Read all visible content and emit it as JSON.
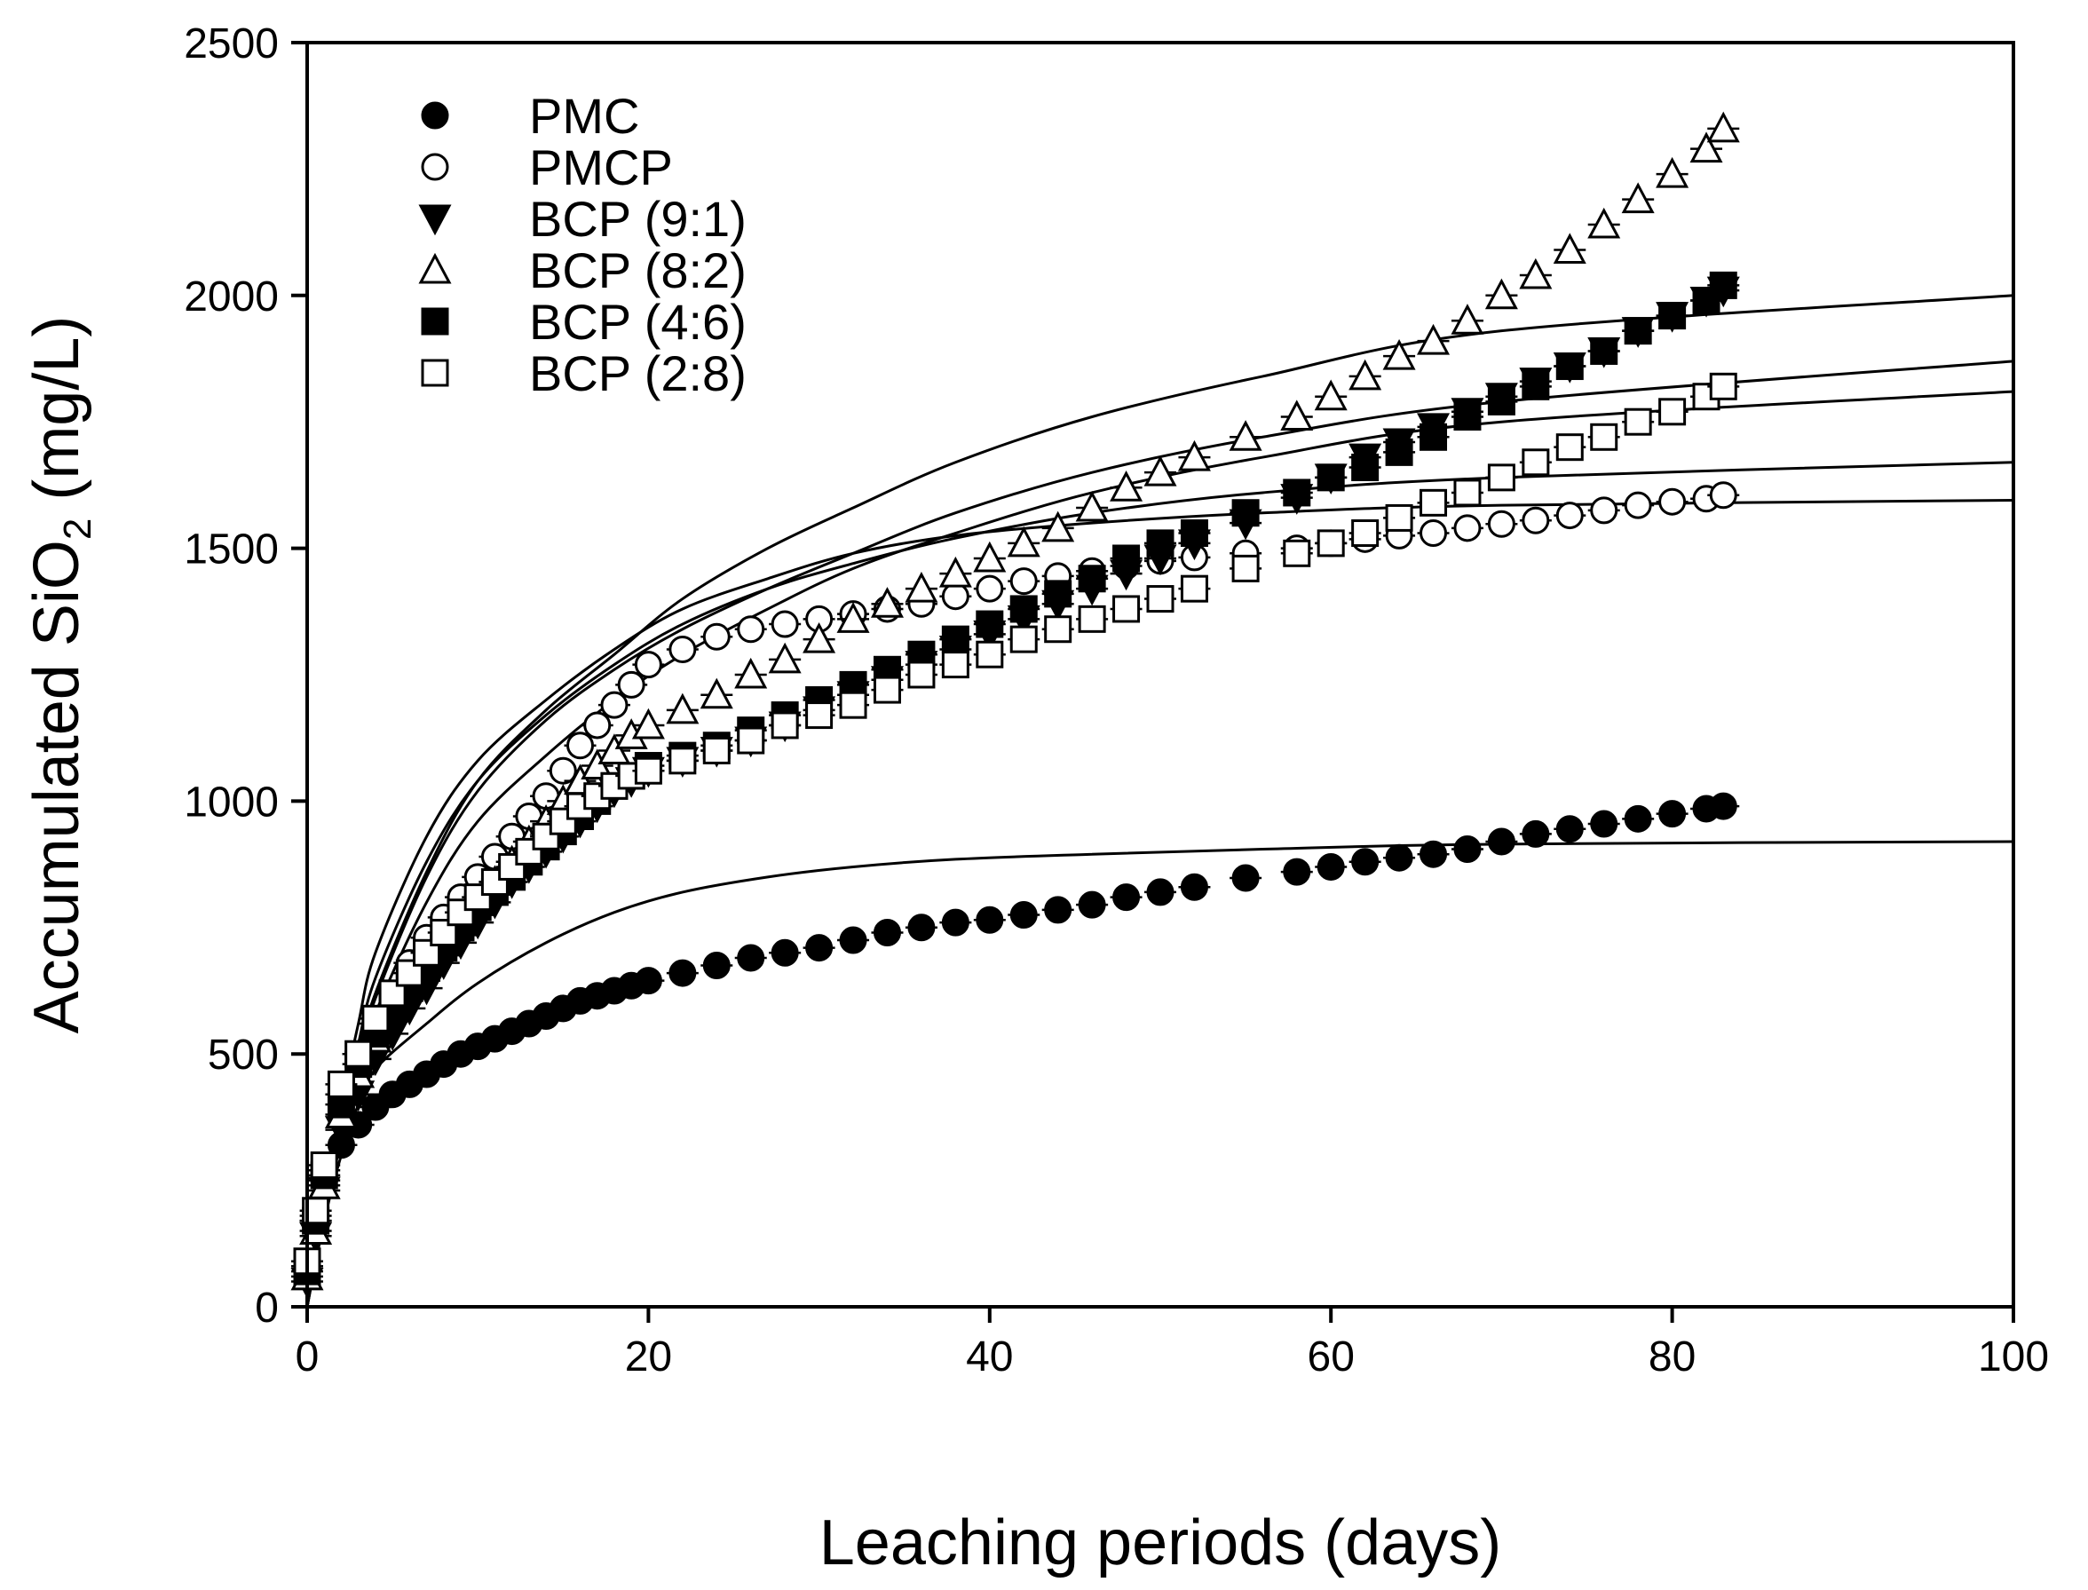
{
  "chart_data": {
    "type": "scatter",
    "title": "",
    "xlabel": "Leaching periods (days)",
    "ylabel": {
      "main": "Accumulated  SiO",
      "sub": "2",
      "suffix": " (mg/L)"
    },
    "xlim": [
      0,
      100
    ],
    "ylim": [
      0,
      2500
    ],
    "x_ticks": [
      "0",
      "20",
      "40",
      "60",
      "80",
      "100"
    ],
    "y_ticks": [
      "0",
      "500",
      "1000",
      "1500",
      "2000",
      "2500"
    ],
    "grid": false,
    "legend_position": "top-left",
    "series": [
      {
        "name": "PMC",
        "marker": "filled-circle",
        "x": [
          0,
          0.5,
          1,
          2,
          3,
          4,
          5,
          6,
          7,
          8,
          9,
          10,
          11,
          12,
          13,
          14,
          15,
          16,
          17,
          18,
          19,
          20,
          22,
          24,
          26,
          28,
          30,
          32,
          34,
          36,
          38,
          40,
          42,
          44,
          46,
          48,
          50,
          52,
          55,
          58,
          60,
          62,
          64,
          66,
          68,
          70,
          72,
          74,
          76,
          78,
          80,
          82,
          83
        ],
        "y": [
          80,
          170,
          250,
          320,
          360,
          395,
          420,
          440,
          460,
          480,
          500,
          515,
          530,
          545,
          560,
          575,
          590,
          605,
          615,
          625,
          635,
          645,
          660,
          675,
          690,
          700,
          710,
          725,
          740,
          750,
          760,
          765,
          775,
          785,
          795,
          810,
          820,
          830,
          848,
          860,
          870,
          880,
          888,
          895,
          905,
          920,
          935,
          945,
          955,
          965,
          975,
          985,
          990
        ],
        "fit": [
          0,
          170,
          300,
          400,
          470,
          560,
          640,
          720,
          780,
          820,
          850,
          870,
          885,
          895,
          905,
          915,
          920
        ]
      },
      {
        "name": "PMCP",
        "marker": "open-circle",
        "x": [
          0,
          0.5,
          1,
          2,
          3,
          4,
          5,
          6,
          7,
          8,
          9,
          10,
          11,
          12,
          13,
          14,
          15,
          16,
          17,
          18,
          19,
          20,
          22,
          24,
          26,
          28,
          30,
          32,
          34,
          36,
          38,
          40,
          42,
          44,
          46,
          48,
          50,
          52,
          55,
          58,
          60,
          62,
          64,
          66,
          68,
          70,
          72,
          74,
          76,
          78,
          80,
          82,
          83
        ],
        "y": [
          80,
          180,
          270,
          420,
          500,
          560,
          620,
          680,
          730,
          770,
          810,
          850,
          890,
          930,
          970,
          1010,
          1060,
          1110,
          1150,
          1190,
          1230,
          1270,
          1300,
          1325,
          1340,
          1350,
          1360,
          1370,
          1380,
          1390,
          1405,
          1420,
          1435,
          1445,
          1455,
          1465,
          1475,
          1482,
          1490,
          1500,
          1510,
          1518,
          1525,
          1530,
          1540,
          1548,
          1555,
          1565,
          1575,
          1585,
          1592,
          1598,
          1605
        ],
        "fit": [
          0,
          220,
          400,
          560,
          700,
          930,
          1080,
          1200,
          1300,
          1380,
          1440,
          1490,
          1525,
          1550,
          1570,
          1585,
          1595
        ]
      },
      {
        "name": "BCP (9:1)",
        "marker": "filled-triangle-down",
        "x": [
          0,
          0.5,
          1,
          2,
          3,
          4,
          5,
          6,
          7,
          8,
          9,
          10,
          11,
          12,
          13,
          14,
          15,
          16,
          17,
          18,
          19,
          20,
          22,
          24,
          26,
          28,
          30,
          32,
          34,
          36,
          38,
          40,
          42,
          44,
          46,
          48,
          50,
          52,
          55,
          58,
          60,
          62,
          64,
          66,
          68,
          70,
          72,
          74,
          76,
          78,
          80,
          82,
          83
        ],
        "y": [
          50,
          140,
          230,
          350,
          420,
          490,
          540,
          590,
          630,
          680,
          720,
          760,
          800,
          840,
          870,
          900,
          930,
          960,
          990,
          1020,
          1040,
          1060,
          1080,
          1100,
          1120,
          1150,
          1180,
          1210,
          1240,
          1270,
          1300,
          1330,
          1360,
          1390,
          1420,
          1450,
          1480,
          1510,
          1550,
          1600,
          1640,
          1680,
          1710,
          1740,
          1770,
          1800,
          1830,
          1860,
          1890,
          1930,
          1960,
          1990,
          2010
        ],
        "fit": [
          0,
          180,
          330,
          460,
          580,
          800,
          960,
          1090,
          1200,
          1290,
          1380,
          1460,
          1530,
          1610,
          1680,
          1750,
          1810
        ]
      },
      {
        "name": "BCP (8:2)",
        "marker": "open-triangle-up",
        "x": [
          0,
          0.5,
          1,
          2,
          3,
          4,
          5,
          6,
          7,
          8,
          9,
          10,
          11,
          12,
          13,
          14,
          15,
          16,
          17,
          18,
          19,
          20,
          22,
          24,
          26,
          28,
          30,
          32,
          34,
          36,
          38,
          40,
          42,
          44,
          46,
          48,
          50,
          52,
          55,
          58,
          60,
          62,
          64,
          66,
          68,
          70,
          72,
          74,
          76,
          78,
          80,
          82,
          83
        ],
        "y": [
          60,
          150,
          240,
          380,
          460,
          530,
          590,
          640,
          680,
          720,
          760,
          800,
          840,
          880,
          920,
          960,
          1000,
          1040,
          1070,
          1100,
          1130,
          1150,
          1180,
          1210,
          1250,
          1280,
          1320,
          1360,
          1390,
          1420,
          1450,
          1480,
          1510,
          1540,
          1580,
          1620,
          1650,
          1680,
          1720,
          1760,
          1800,
          1840,
          1880,
          1910,
          1950,
          2000,
          2040,
          2090,
          2140,
          2190,
          2240,
          2290,
          2330
        ],
        "fit": [
          0,
          190,
          350,
          500,
          620,
          860,
          1040,
          1180,
          1290,
          1400,
          1500,
          1580,
          1670,
          1760,
          1840,
          1930,
          2000
        ]
      },
      {
        "name": "BCP (4:6)",
        "marker": "filled-square",
        "x": [
          0,
          0.5,
          1,
          2,
          3,
          4,
          5,
          6,
          7,
          8,
          9,
          10,
          11,
          12,
          13,
          14,
          15,
          16,
          17,
          18,
          19,
          20,
          22,
          24,
          26,
          28,
          30,
          32,
          34,
          36,
          38,
          40,
          42,
          44,
          46,
          48,
          50,
          52,
          55,
          58,
          60,
          62,
          64,
          66,
          68,
          70,
          72,
          74,
          76,
          78,
          80,
          82,
          83
        ],
        "y": [
          70,
          170,
          260,
          400,
          480,
          540,
          590,
          630,
          670,
          710,
          750,
          790,
          820,
          850,
          880,
          910,
          940,
          970,
          1000,
          1030,
          1050,
          1070,
          1090,
          1110,
          1140,
          1170,
          1200,
          1230,
          1260,
          1290,
          1320,
          1350,
          1380,
          1410,
          1440,
          1480,
          1510,
          1530,
          1570,
          1610,
          1640,
          1660,
          1690,
          1720,
          1760,
          1790,
          1820,
          1860,
          1890,
          1930,
          1960,
          1990,
          2020
        ],
        "fit": [
          0,
          190,
          350,
          490,
          610,
          850,
          1020,
          1160,
          1260,
          1340,
          1420,
          1490,
          1570,
          1650,
          1720,
          1790,
          1870
        ]
      },
      {
        "name": "BCP (2:8)",
        "marker": "open-square",
        "x": [
          0,
          0.5,
          1,
          2,
          3,
          4,
          5,
          6,
          7,
          8,
          9,
          10,
          11,
          12,
          13,
          14,
          15,
          16,
          17,
          18,
          19,
          20,
          22,
          24,
          26,
          28,
          30,
          32,
          34,
          36,
          38,
          40,
          42,
          44,
          46,
          48,
          50,
          52,
          55,
          58,
          60,
          62,
          64,
          66,
          68,
          70,
          72,
          74,
          76,
          78,
          80,
          82,
          83
        ],
        "y": [
          90,
          190,
          280,
          440,
          500,
          570,
          620,
          660,
          700,
          740,
          780,
          810,
          840,
          870,
          900,
          930,
          960,
          990,
          1010,
          1030,
          1050,
          1060,
          1080,
          1100,
          1120,
          1150,
          1170,
          1190,
          1220,
          1250,
          1270,
          1290,
          1320,
          1340,
          1360,
          1380,
          1400,
          1420,
          1460,
          1490,
          1510,
          1530,
          1560,
          1590,
          1610,
          1640,
          1670,
          1700,
          1720,
          1750,
          1770,
          1800,
          1820
        ],
        "fit": [
          0,
          200,
          370,
          520,
          650,
          880,
          1040,
          1170,
          1270,
          1350,
          1420,
          1470,
          1520,
          1570,
          1610,
          1640,
          1670
        ]
      }
    ],
    "fit_x": [
      0,
      1,
      2,
      3,
      4,
      7,
      10,
      14,
      18,
      22,
      27,
      32,
      38,
      46,
      56,
      70,
      100
    ]
  }
}
